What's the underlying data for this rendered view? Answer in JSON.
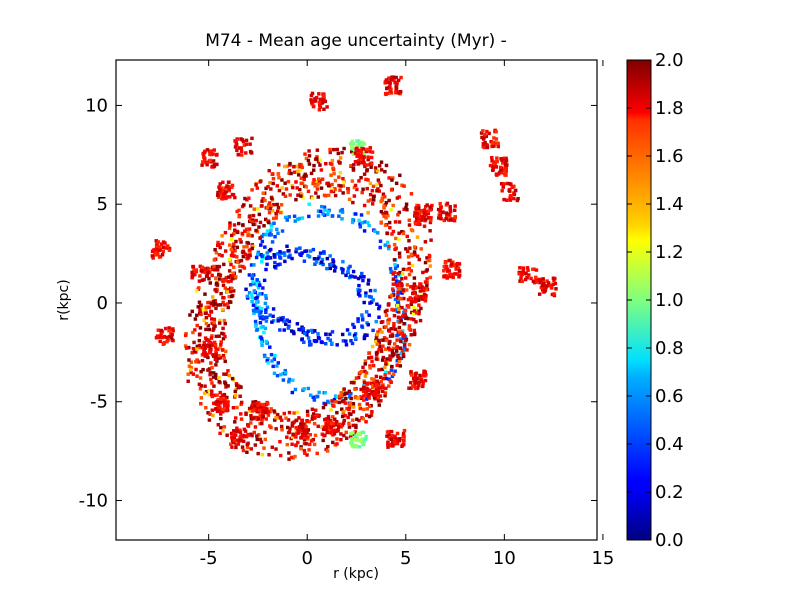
{
  "chart_data": {
    "type": "heatmap",
    "title": "M74 - Mean age uncertainty (Myr) -",
    "xlabel": "r (kpc)",
    "ylabel": "r(kpc)",
    "xlim": [
      -9.7,
      14.7
    ],
    "ylim": [
      -12,
      12.3
    ],
    "xticks": [
      -5,
      0,
      5,
      10,
      15
    ],
    "xtick_labels": [
      "-5",
      "0",
      "5",
      "10",
      "15"
    ],
    "yticks": [
      -10,
      -5,
      0,
      5,
      10
    ],
    "ytick_labels": [
      "-10",
      "-5",
      "0",
      "5",
      "10"
    ],
    "colorbar": {
      "cmap": "jet",
      "range": [
        0.0,
        2.0
      ],
      "ticks": [
        0.0,
        0.2,
        0.4,
        0.6,
        0.8,
        1.0,
        1.2,
        1.4,
        1.6,
        1.8,
        2.0
      ],
      "tick_labels": [
        "0.0",
        "0.2",
        "0.4",
        "0.6",
        "0.8",
        "1.0",
        "1.2",
        "1.4",
        "1.6",
        "1.8",
        "2.0"
      ]
    },
    "grid": false,
    "regions": [
      {
        "name": "inner-ring",
        "center": [
          0.2,
          0.4
        ],
        "radius_x": 2.6,
        "radius_y": 2.3,
        "width": 0.9,
        "value": 0.3
      },
      {
        "name": "middle-ring",
        "center": [
          1.0,
          0.0
        ],
        "radius_x": 4.4,
        "radius_y": 4.1,
        "width": 0.6,
        "value": 0.5
      },
      {
        "name": "outer-arms",
        "center": [
          0.0,
          0.0
        ],
        "radius_x": 5.6,
        "radius_y": 5.9,
        "width": 2.2,
        "value": 1.8
      },
      {
        "name": "green-patch-1",
        "center": [
          2.5,
          7.9
        ],
        "value": 1.0
      },
      {
        "name": "green-patch-2",
        "center": [
          2.5,
          -6.8
        ],
        "value": 1.0
      }
    ]
  }
}
